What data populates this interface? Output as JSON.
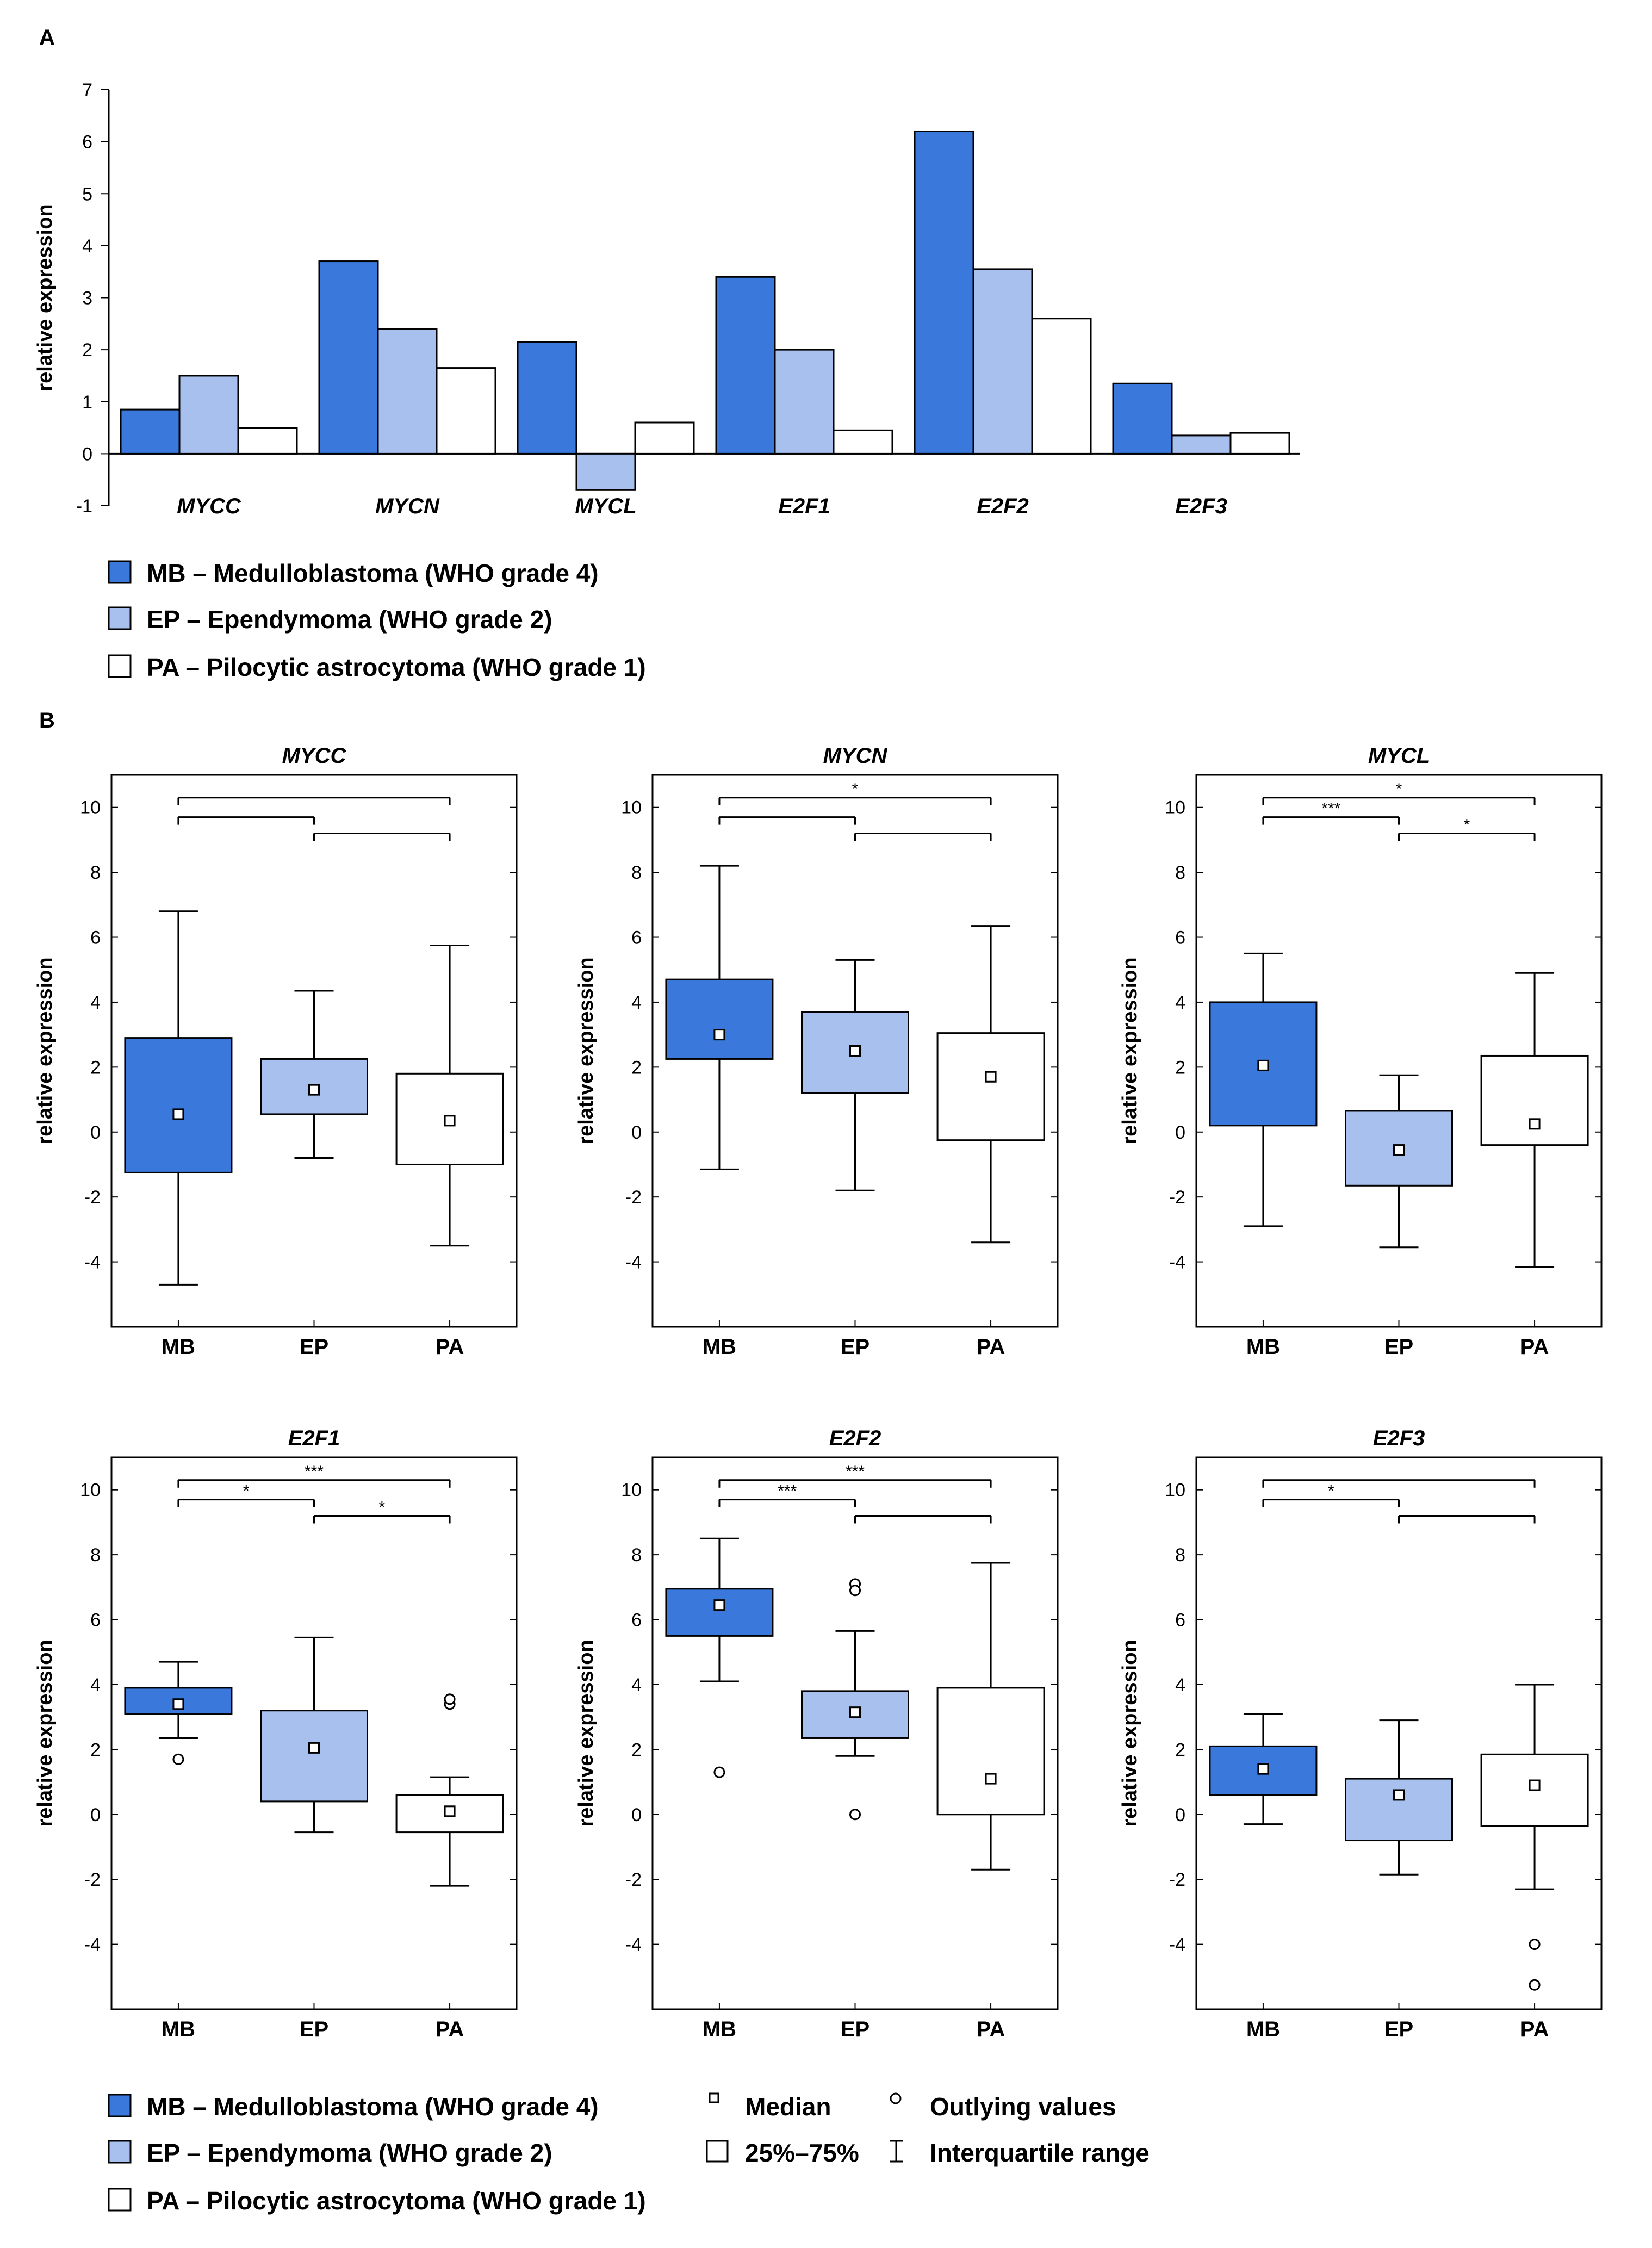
{
  "colors": {
    "MB": "#3a78db",
    "EP": "#a7c0ee",
    "PA": "#ffffff",
    "stroke": "#000000"
  },
  "panel_labels": {
    "a": "A",
    "b": "B"
  },
  "legend": [
    {
      "key": "MB",
      "label": "MB – Medulloblastoma (WHO grade 4)"
    },
    {
      "key": "EP",
      "label": "EP – Ependymoma (WHO grade 2)"
    },
    {
      "key": "PA",
      "label": "PA – Pilocytic astrocytoma (WHO grade 1)"
    }
  ],
  "box_legend": {
    "median": "Median",
    "outliers": "Outlying values",
    "box": "25%–75%",
    "whisker": "Interquartile range"
  },
  "chart_data": [
    {
      "type": "bar",
      "id": "A",
      "ylabel": "relative expression",
      "ylim": [
        -1,
        7
      ],
      "yticks": [
        -1,
        0,
        1,
        2,
        3,
        4,
        5,
        6,
        7
      ],
      "categories": [
        "MYCC",
        "MYCN",
        "MYCL",
        "E2F1",
        "E2F2",
        "E2F3"
      ],
      "series": [
        {
          "name": "MB",
          "values": [
            0.85,
            3.7,
            2.15,
            3.4,
            6.2,
            1.35
          ]
        },
        {
          "name": "EP",
          "values": [
            1.5,
            2.4,
            -0.7,
            2.0,
            3.55,
            0.35
          ]
        },
        {
          "name": "PA",
          "values": [
            0.5,
            1.65,
            0.6,
            0.45,
            2.6,
            0.4
          ]
        }
      ]
    },
    {
      "type": "box",
      "title": "MYCC",
      "ylabel": "relative expression",
      "ylim": [
        -6,
        11
      ],
      "yticks": [
        -4,
        -2,
        0,
        2,
        4,
        6,
        8,
        10
      ],
      "groups": [
        "MB",
        "EP",
        "PA"
      ],
      "boxes": [
        {
          "group": "MB",
          "whisker_low": -4.7,
          "q1": -1.25,
          "median": 0.55,
          "q3": 2.9,
          "whisker_high": 6.8,
          "outliers": []
        },
        {
          "group": "EP",
          "whisker_low": -0.8,
          "q1": 0.55,
          "median": 1.3,
          "q3": 2.25,
          "whisker_high": 4.35,
          "outliers": []
        },
        {
          "group": "PA",
          "whisker_low": -3.5,
          "q1": -1.0,
          "median": 0.35,
          "q3": 1.8,
          "whisker_high": 5.75,
          "outliers": []
        }
      ],
      "comparisons": [
        {
          "from": 0,
          "to": 2,
          "level": 10.3,
          "label": ""
        },
        {
          "from": 0,
          "to": 1,
          "level": 9.7,
          "label": ""
        },
        {
          "from": 1,
          "to": 2,
          "level": 9.2,
          "label": ""
        }
      ]
    },
    {
      "type": "box",
      "title": "MYCN",
      "ylabel": "relative expression",
      "ylim": [
        -6,
        11
      ],
      "yticks": [
        -4,
        -2,
        0,
        2,
        4,
        6,
        8,
        10
      ],
      "groups": [
        "MB",
        "EP",
        "PA"
      ],
      "boxes": [
        {
          "group": "MB",
          "whisker_low": -1.15,
          "q1": 2.25,
          "median": 3.0,
          "q3": 4.7,
          "whisker_high": 8.2,
          "outliers": []
        },
        {
          "group": "EP",
          "whisker_low": -1.8,
          "q1": 1.2,
          "median": 2.5,
          "q3": 3.7,
          "whisker_high": 5.3,
          "outliers": []
        },
        {
          "group": "PA",
          "whisker_low": -3.4,
          "q1": -0.25,
          "median": 1.7,
          "q3": 3.05,
          "whisker_high": 6.35,
          "outliers": []
        }
      ],
      "comparisons": [
        {
          "from": 0,
          "to": 2,
          "level": 10.3,
          "label": "*"
        },
        {
          "from": 0,
          "to": 1,
          "level": 9.7,
          "label": ""
        },
        {
          "from": 1,
          "to": 2,
          "level": 9.2,
          "label": ""
        }
      ]
    },
    {
      "type": "box",
      "title": "MYCL",
      "ylabel": "relative expression",
      "ylim": [
        -6,
        11
      ],
      "yticks": [
        -4,
        -2,
        0,
        2,
        4,
        6,
        8,
        10
      ],
      "groups": [
        "MB",
        "EP",
        "PA"
      ],
      "boxes": [
        {
          "group": "MB",
          "whisker_low": -2.9,
          "q1": 0.2,
          "median": 2.05,
          "q3": 4.0,
          "whisker_high": 5.5,
          "outliers": []
        },
        {
          "group": "EP",
          "whisker_low": -3.55,
          "q1": -1.65,
          "median": -0.55,
          "q3": 0.65,
          "whisker_high": 1.75,
          "outliers": []
        },
        {
          "group": "PA",
          "whisker_low": -4.15,
          "q1": -0.4,
          "median": 0.25,
          "q3": 2.35,
          "whisker_high": 4.9,
          "outliers": []
        }
      ],
      "comparisons": [
        {
          "from": 0,
          "to": 2,
          "level": 10.3,
          "label": "*"
        },
        {
          "from": 0,
          "to": 1,
          "level": 9.7,
          "label": "***"
        },
        {
          "from": 1,
          "to": 2,
          "level": 9.2,
          "label": "*"
        }
      ]
    },
    {
      "type": "box",
      "title": "E2F1",
      "ylabel": "relative expression",
      "ylim": [
        -6,
        11
      ],
      "yticks": [
        -4,
        -2,
        0,
        2,
        4,
        6,
        8,
        10
      ],
      "groups": [
        "MB",
        "EP",
        "PA"
      ],
      "boxes": [
        {
          "group": "MB",
          "whisker_low": 2.35,
          "q1": 3.1,
          "median": 3.4,
          "q3": 3.9,
          "whisker_high": 4.7,
          "outliers": [
            1.7
          ]
        },
        {
          "group": "EP",
          "whisker_low": -0.55,
          "q1": 0.4,
          "median": 2.05,
          "q3": 3.2,
          "whisker_high": 5.45,
          "outliers": []
        },
        {
          "group": "PA",
          "whisker_low": -2.2,
          "q1": -0.55,
          "median": 0.1,
          "q3": 0.6,
          "whisker_high": 1.15,
          "outliers": [
            3.4,
            3.55
          ]
        }
      ],
      "comparisons": [
        {
          "from": 0,
          "to": 2,
          "level": 10.3,
          "label": "***"
        },
        {
          "from": 0,
          "to": 1,
          "level": 9.7,
          "label": "*"
        },
        {
          "from": 1,
          "to": 2,
          "level": 9.2,
          "label": "*"
        }
      ]
    },
    {
      "type": "box",
      "title": "E2F2",
      "ylabel": "relative expression",
      "ylim": [
        -6,
        11
      ],
      "yticks": [
        -4,
        -2,
        0,
        2,
        4,
        6,
        8,
        10
      ],
      "groups": [
        "MB",
        "EP",
        "PA"
      ],
      "boxes": [
        {
          "group": "MB",
          "whisker_low": 4.1,
          "q1": 5.5,
          "median": 6.45,
          "q3": 6.95,
          "whisker_high": 8.5,
          "outliers": [
            1.3
          ]
        },
        {
          "group": "EP",
          "whisker_low": 1.8,
          "q1": 2.35,
          "median": 3.15,
          "q3": 3.8,
          "whisker_high": 5.65,
          "outliers": [
            7.1,
            6.9,
            0.0
          ]
        },
        {
          "group": "PA",
          "whisker_low": -1.7,
          "q1": 0.0,
          "median": 1.1,
          "q3": 3.9,
          "whisker_high": 7.75,
          "outliers": []
        }
      ],
      "comparisons": [
        {
          "from": 0,
          "to": 2,
          "level": 10.3,
          "label": "***"
        },
        {
          "from": 0,
          "to": 1,
          "level": 9.7,
          "label": "***"
        },
        {
          "from": 1,
          "to": 2,
          "level": 9.2,
          "label": ""
        }
      ]
    },
    {
      "type": "box",
      "title": "E2F3",
      "ylabel": "relative expression",
      "ylim": [
        -6,
        11
      ],
      "yticks": [
        -4,
        -2,
        0,
        2,
        4,
        6,
        8,
        10
      ],
      "groups": [
        "MB",
        "EP",
        "PA"
      ],
      "boxes": [
        {
          "group": "MB",
          "whisker_low": -0.3,
          "q1": 0.6,
          "median": 1.4,
          "q3": 2.1,
          "whisker_high": 3.1,
          "outliers": []
        },
        {
          "group": "EP",
          "whisker_low": -1.85,
          "q1": -0.8,
          "median": 0.6,
          "q3": 1.1,
          "whisker_high": 2.9,
          "outliers": []
        },
        {
          "group": "PA",
          "whisker_low": -2.3,
          "q1": -0.35,
          "median": 0.9,
          "q3": 1.85,
          "whisker_high": 4.0,
          "outliers": [
            -4.0,
            -5.25
          ]
        }
      ],
      "comparisons": [
        {
          "from": 0,
          "to": 2,
          "level": 10.3,
          "label": ""
        },
        {
          "from": 0,
          "to": 1,
          "level": 9.7,
          "label": "*"
        },
        {
          "from": 1,
          "to": 2,
          "level": 9.2,
          "label": ""
        }
      ]
    }
  ]
}
